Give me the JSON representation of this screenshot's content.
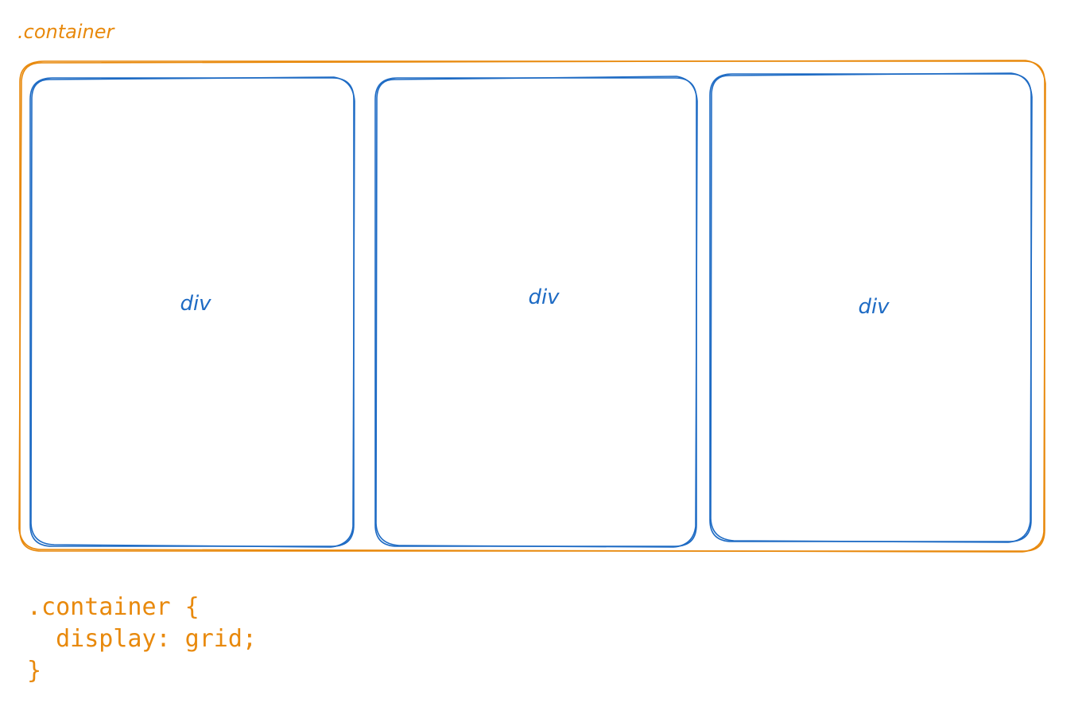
{
  "colors": {
    "container": "#e8890c",
    "child": "#1e6bc4"
  },
  "container_label": ".container",
  "children": [
    {
      "label": "div"
    },
    {
      "label": "div"
    },
    {
      "label": "div"
    }
  ],
  "code": {
    "line1": ".container {",
    "line2": "  display: grid;",
    "line3": "}"
  }
}
